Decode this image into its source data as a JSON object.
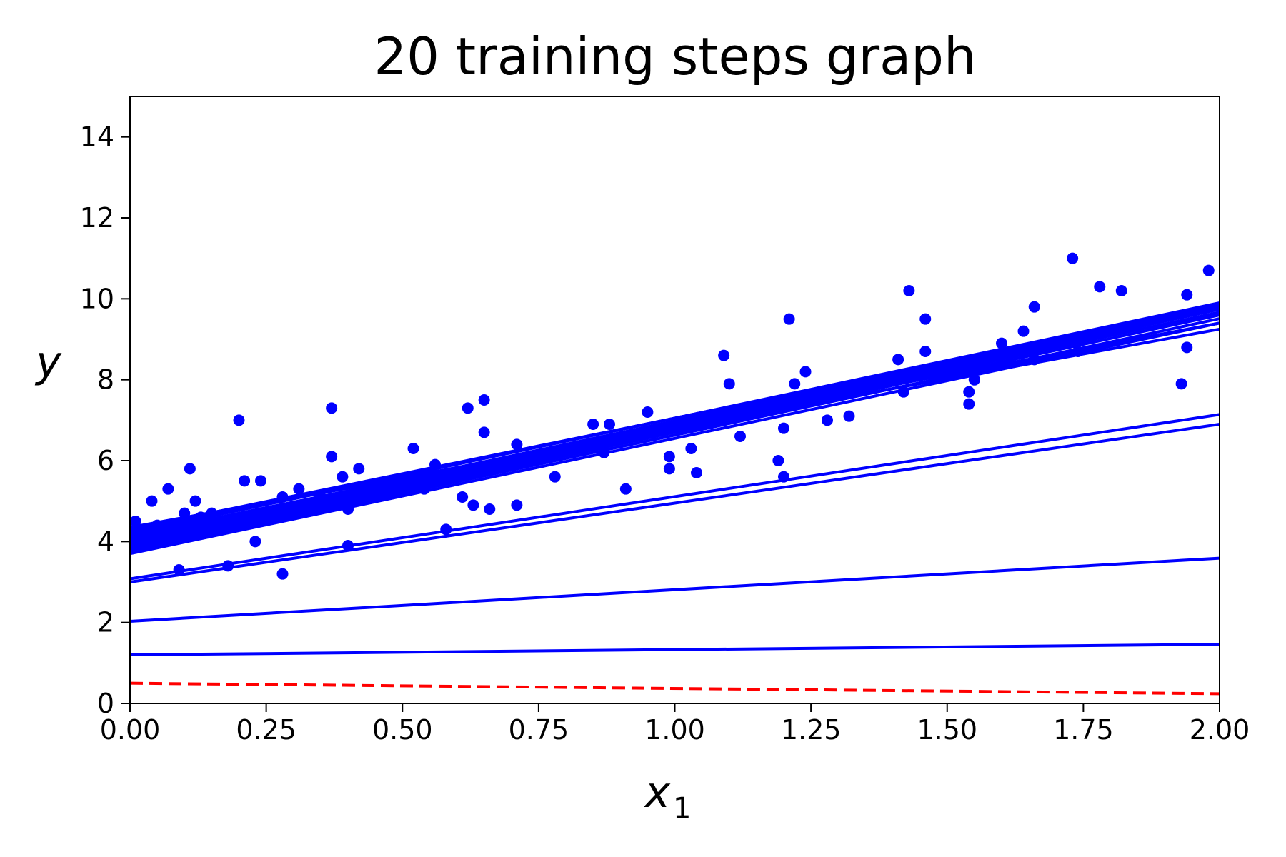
{
  "chart_data": {
    "type": "scatter",
    "title": "20 training steps graph",
    "xlabel": "x",
    "xlabel_subscript": "1",
    "ylabel": "y",
    "xlim": [
      0,
      2
    ],
    "ylim": [
      0,
      15
    ],
    "xticks": [
      0,
      0.25,
      0.5,
      0.75,
      1.0,
      1.25,
      1.5,
      1.75,
      2.0
    ],
    "xtick_labels": [
      "0.00",
      "0.25",
      "0.50",
      "0.75",
      "1.00",
      "1.25",
      "1.50",
      "1.75",
      "2.00"
    ],
    "yticks": [
      0,
      2,
      4,
      6,
      8,
      10,
      12,
      14
    ],
    "ytick_labels": [
      "0",
      "2",
      "4",
      "6",
      "8",
      "10",
      "12",
      "14"
    ],
    "grid": false,
    "colors": {
      "points": "#0000ff",
      "lines": "#0000ff",
      "initial_line": "#ff0000"
    },
    "points": {
      "x": [
        0.01,
        0.04,
        0.05,
        0.07,
        0.09,
        0.1,
        0.11,
        0.12,
        0.13,
        0.15,
        0.18,
        0.2,
        0.21,
        0.23,
        0.24,
        0.25,
        0.28,
        0.28,
        0.31,
        0.31,
        0.35,
        0.37,
        0.37,
        0.39,
        0.4,
        0.4,
        0.42,
        0.52,
        0.54,
        0.56,
        0.58,
        0.61,
        0.62,
        0.63,
        0.65,
        0.65,
        0.66,
        0.71,
        0.71,
        0.78,
        0.85,
        0.87,
        0.88,
        0.91,
        0.95,
        0.99,
        0.99,
        1.03,
        1.04,
        1.09,
        1.1,
        1.12,
        1.19,
        1.2,
        1.2,
        1.21,
        1.22,
        1.24,
        1.28,
        1.32,
        1.41,
        1.42,
        1.43,
        1.46,
        1.46,
        1.54,
        1.54,
        1.55,
        1.55,
        1.6,
        1.64,
        1.66,
        1.66,
        1.73,
        1.74,
        1.78,
        1.82,
        1.93,
        1.94,
        1.94,
        1.98
      ],
      "y": [
        4.5,
        5.0,
        4.4,
        5.3,
        3.3,
        4.7,
        5.8,
        5.0,
        4.6,
        4.7,
        3.4,
        7.0,
        5.5,
        4.0,
        5.5,
        4.7,
        3.2,
        5.1,
        4.7,
        5.3,
        5.1,
        7.3,
        6.1,
        5.6,
        3.9,
        4.8,
        5.8,
        6.3,
        5.3,
        5.9,
        4.3,
        5.1,
        7.3,
        4.9,
        7.5,
        6.7,
        4.8,
        4.9,
        6.4,
        5.6,
        6.9,
        6.2,
        6.9,
        5.3,
        7.2,
        6.1,
        5.8,
        6.3,
        5.7,
        8.6,
        7.9,
        6.6,
        6.0,
        5.6,
        6.8,
        9.5,
        7.9,
        8.2,
        7.0,
        7.1,
        8.5,
        7.7,
        10.2,
        9.5,
        8.7,
        7.4,
        7.7,
        8.0,
        8.0,
        8.9,
        9.2,
        9.8,
        8.5,
        11.0,
        8.7,
        10.3,
        10.2,
        7.9,
        8.8,
        10.1,
        10.7
      ]
    },
    "series": [
      {
        "intercept": 0.5,
        "slope": -0.13,
        "style": "dashed"
      },
      {
        "intercept": 1.2,
        "slope": 0.13
      },
      {
        "intercept": 2.03,
        "slope": 0.78
      },
      {
        "intercept": 3.0,
        "slope": 1.95
      },
      {
        "intercept": 3.08,
        "slope": 2.03
      },
      {
        "intercept": 3.7,
        "slope": 2.85
      },
      {
        "intercept": 3.75,
        "slope": 2.88
      },
      {
        "intercept": 3.8,
        "slope": 2.9
      },
      {
        "intercept": 3.85,
        "slope": 2.91
      },
      {
        "intercept": 3.9,
        "slope": 2.92
      },
      {
        "intercept": 3.95,
        "slope": 2.92
      },
      {
        "intercept": 4.0,
        "slope": 2.92
      },
      {
        "intercept": 4.0,
        "slope": 2.7
      },
      {
        "intercept": 4.05,
        "slope": 2.9
      },
      {
        "intercept": 4.1,
        "slope": 2.88
      },
      {
        "intercept": 4.15,
        "slope": 2.75
      },
      {
        "intercept": 4.2,
        "slope": 2.85
      },
      {
        "intercept": 4.25,
        "slope": 2.8
      },
      {
        "intercept": 4.3,
        "slope": 2.75
      },
      {
        "intercept": 4.3,
        "slope": 2.55
      },
      {
        "intercept": 4.35,
        "slope": 2.45
      }
    ]
  }
}
